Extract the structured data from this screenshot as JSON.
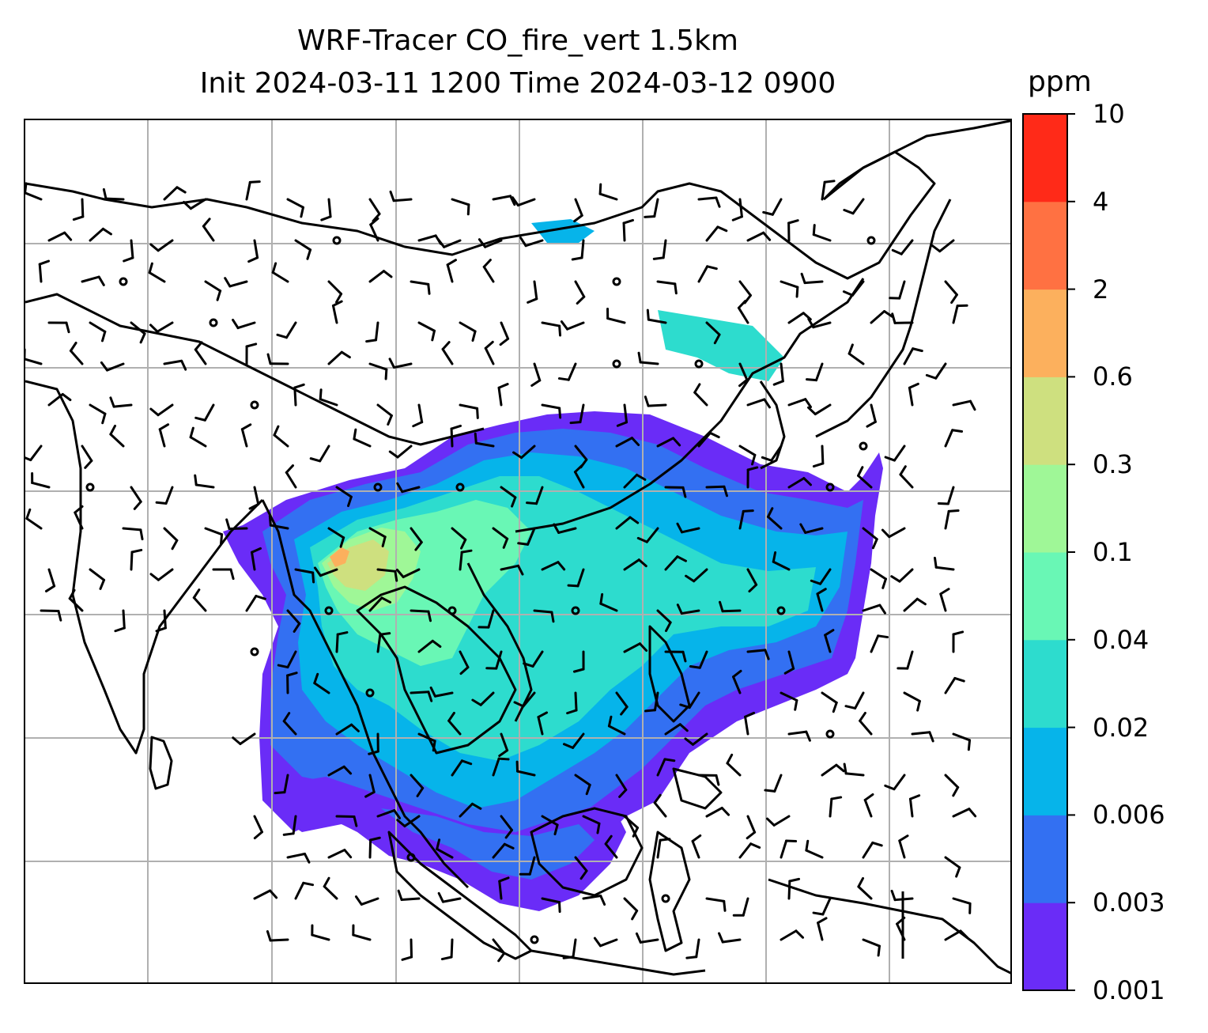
{
  "title": {
    "line1": "WRF-Tracer CO_fire_vert 1.5km",
    "line2": "Init 2024-03-11 1200 Time 2024-03-12 0900"
  },
  "colorbar": {
    "unit": "ppm",
    "tick_labels": [
      "0.001",
      "0.003",
      "0.006",
      "0.02",
      "0.04",
      "0.1",
      "0.3",
      "0.6",
      "2",
      "4",
      "10"
    ],
    "colors": [
      "#6a2cf7",
      "#3370f2",
      "#06b4ea",
      "#2ddcce",
      "#69f7b5",
      "#9ff797",
      "#cee07f",
      "#fcb05d",
      "#ff7142",
      "#ff2a18"
    ]
  },
  "map": {
    "gridlines": true,
    "coastline_color": "#000000",
    "gridline_color": "#b0b0b0",
    "overlays": [
      "CO tracer concentration shading",
      "wind barbs",
      "calm-wind circles"
    ]
  }
}
